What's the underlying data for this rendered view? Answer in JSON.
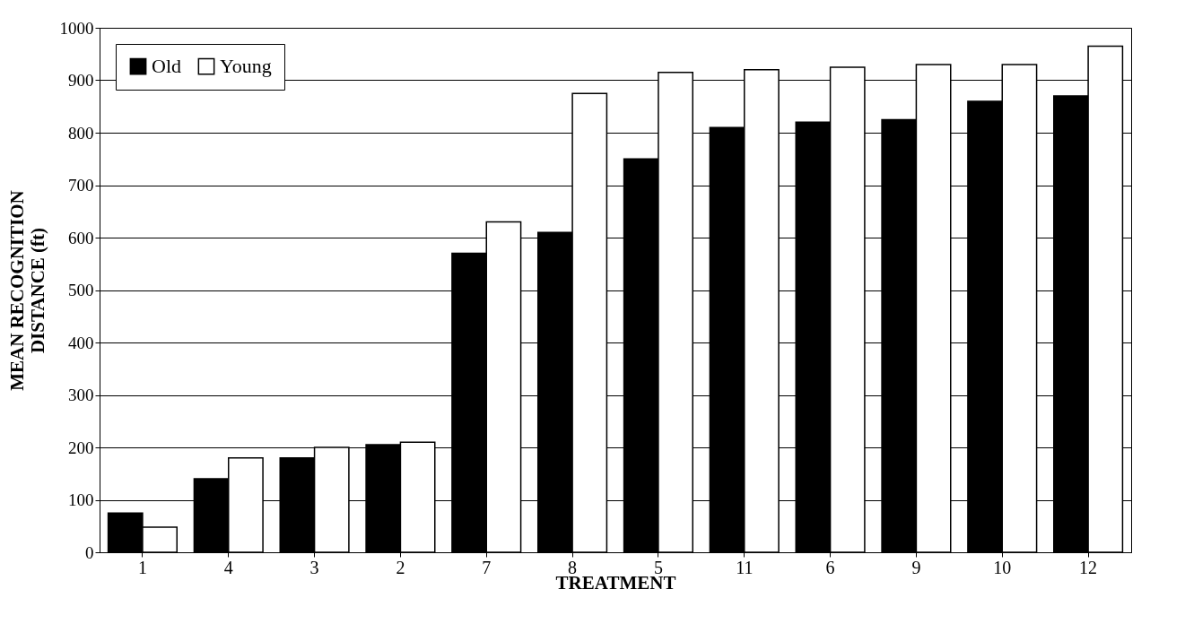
{
  "chart_data": {
    "type": "bar",
    "xlabel": "TREATMENT",
    "ylabel": "MEAN RECOGNITION DISTANCE (ft)",
    "categories": [
      "1",
      "4",
      "3",
      "2",
      "7",
      "8",
      "5",
      "11",
      "6",
      "9",
      "10",
      "12"
    ],
    "series": [
      {
        "name": "Old",
        "color": "#000000",
        "values": [
          75,
          140,
          180,
          205,
          570,
          610,
          750,
          810,
          820,
          825,
          860,
          870
        ]
      },
      {
        "name": "Young",
        "color": "#ffffff",
        "values": [
          48,
          180,
          200,
          210,
          630,
          875,
          915,
          920,
          925,
          930,
          930,
          965
        ]
      }
    ],
    "ylim": [
      0,
      1000
    ],
    "yticks": [
      0,
      100,
      200,
      300,
      400,
      500,
      600,
      700,
      800,
      900,
      1000
    ],
    "grid": "y",
    "legend": "top left"
  }
}
